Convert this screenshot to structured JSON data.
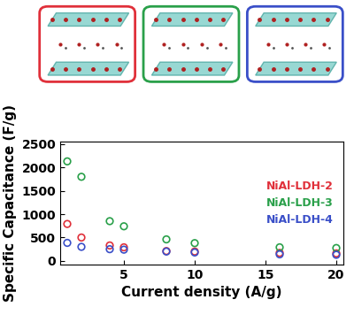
{
  "chart_data": {
    "type": "scatter",
    "x_label": "Current density (A/g)",
    "y_label": "Specific Capacitance (F/g)",
    "xlim": [
      0.5,
      20.5
    ],
    "xticks": [
      5,
      10,
      15,
      20
    ],
    "ylim": [
      -80,
      2550
    ],
    "yticks": [
      0,
      500,
      1000,
      1500,
      2000,
      2500
    ],
    "grid": false,
    "legend": "center right",
    "marker": "circle",
    "series": [
      {
        "name": "NiAl-LDH-2",
        "color": "#e0303a",
        "x": [
          1,
          2,
          4,
          5,
          8,
          10,
          16,
          20
        ],
        "values": [
          790,
          500,
          330,
          290,
          210,
          200,
          170,
          160
        ]
      },
      {
        "name": "NiAl-LDH-3",
        "color": "#2aa04a",
        "x": [
          1,
          2,
          4,
          5,
          8,
          10,
          16,
          20
        ],
        "values": [
          2130,
          1800,
          850,
          740,
          460,
          380,
          290,
          275
        ]
      },
      {
        "name": "NiAl-LDH-4",
        "color": "#3a4fc8",
        "x": [
          1,
          2,
          4,
          5,
          8,
          10,
          16,
          20
        ],
        "values": [
          385,
          300,
          250,
          240,
          200,
          180,
          140,
          130
        ]
      }
    ]
  }
}
